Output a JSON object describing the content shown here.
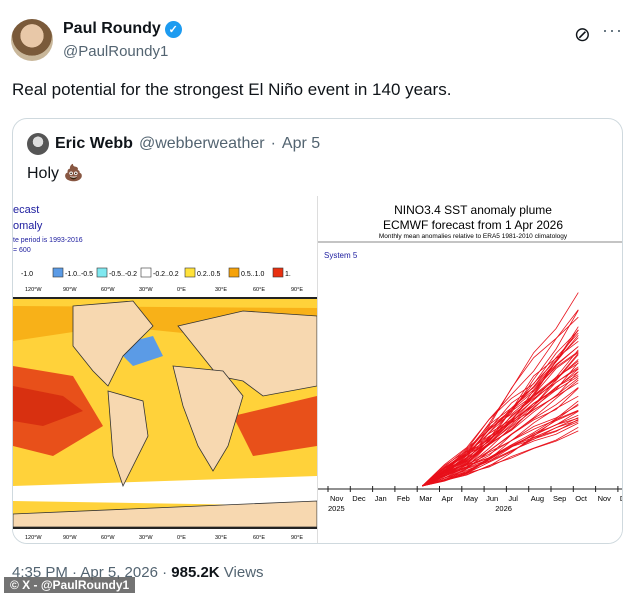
{
  "author": {
    "name": "Paul Roundy",
    "handle": "@PaulRoundy1",
    "verified": true
  },
  "tweet_text": "Real potential for the strongest El Niño event in 140 years.",
  "icons": {
    "grok": "grok-icon",
    "more": "more-icon",
    "verified": "verified-badge-icon"
  },
  "quote": {
    "name": "Eric Webb",
    "handle": "@webberweather",
    "date": "Apr 5",
    "text": "Holy 💩"
  },
  "map_image": {
    "title_lines": [
      "ecast",
      "omaly"
    ],
    "note1": "te period is 1993-2016",
    "note2": "= 600",
    "legend": [
      "-1.0",
      "-1.0..-0.5",
      "-0.5..-0.2",
      "-0.2..0.2",
      "0.2..0.5",
      "0.5..1.0",
      "1."
    ],
    "legend_colors": [
      "#3060c0",
      "#5b9be6",
      "#7fe8f0",
      "#ffffff",
      "#ffe23a",
      "#f5a20a",
      "#e83010"
    ],
    "lon_labels": [
      "120°W",
      "90°W",
      "60°W",
      "30°W",
      "0°E",
      "30°E",
      "60°E",
      "90°E"
    ]
  },
  "chart_data": {
    "type": "line",
    "title": "NINO3.4 SST anomaly plume",
    "subtitle": "ECMWF forecast from 1 Apr 2026",
    "note": "Monthly mean anomalies relative to ERA5 1981-2010 climatology",
    "system": "System 5",
    "categories": [
      "Nov",
      "Dec",
      "Jan",
      "Feb",
      "Mar",
      "Apr",
      "May",
      "Jun",
      "Jul",
      "Aug",
      "Sep",
      "Oct",
      "Nov",
      "Dec"
    ],
    "year_labels": [
      "2025",
      "2026"
    ],
    "series_color": "#e8101a"
  },
  "footer": {
    "time": "4:35 PM · Apr 5, 2026 · ",
    "views": "985.2K",
    "views_label": " Views"
  },
  "watermark": "© X - @PaulRoundy1"
}
